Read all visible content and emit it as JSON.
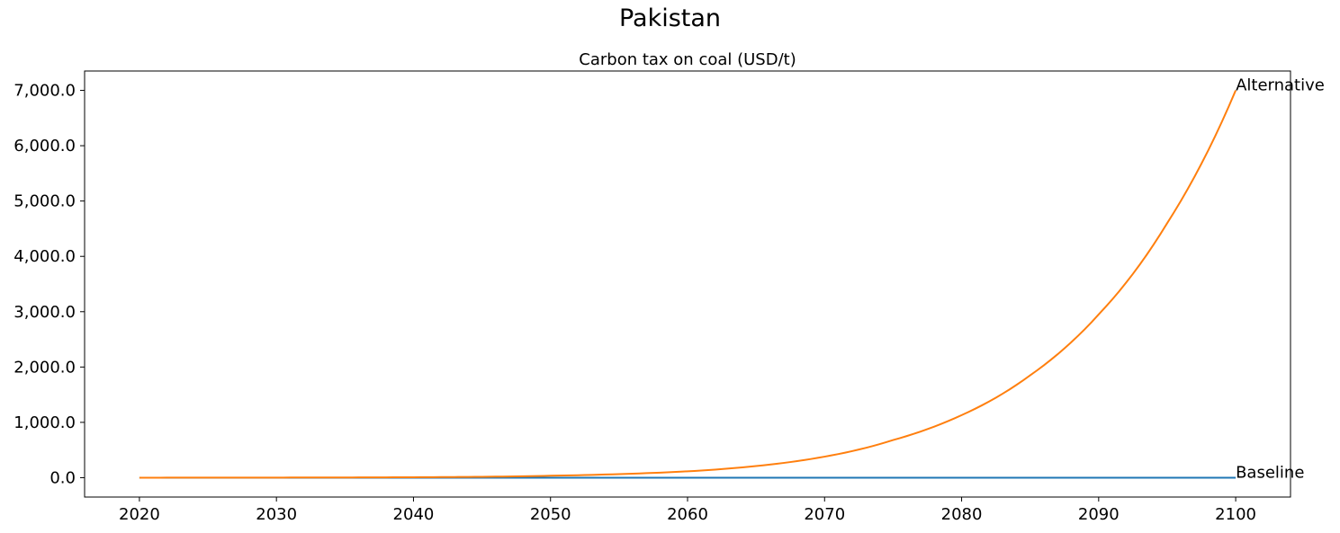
{
  "figure": {
    "title": "Pakistan"
  },
  "chart_data": {
    "type": "line",
    "title": "Carbon tax on coal (USD/t)",
    "xlabel": "",
    "ylabel": "",
    "xlim": [
      2016,
      2104
    ],
    "ylim": [
      -350,
      7350
    ],
    "xticks": [
      2020,
      2030,
      2040,
      2050,
      2060,
      2070,
      2080,
      2090,
      2100
    ],
    "xtick_labels": [
      "2020",
      "2030",
      "2040",
      "2050",
      "2060",
      "2070",
      "2080",
      "2090",
      "2100"
    ],
    "yticks": [
      0,
      1000,
      2000,
      3000,
      4000,
      5000,
      6000,
      7000
    ],
    "ytick_labels": [
      "0.0",
      "1,000.0",
      "2,000.0",
      "3,000.0",
      "4,000.0",
      "5,000.0",
      "6,000.0",
      "7,000.0"
    ],
    "grid": false,
    "legend": "none",
    "series": [
      {
        "name": "Baseline",
        "color": "#1f77b4",
        "x": [
          2020,
          2030,
          2040,
          2050,
          2060,
          2070,
          2080,
          2090,
          2100
        ],
        "y": [
          0,
          0,
          0,
          0,
          0,
          0,
          0,
          0,
          0
        ]
      },
      {
        "name": "Alternative",
        "color": "#ff7f0e",
        "x": [
          2020,
          2025,
          2030,
          2035,
          2040,
          2045,
          2050,
          2055,
          2060,
          2065,
          2070,
          2075,
          2080,
          2085,
          2090,
          2095,
          2100
        ],
        "y": [
          0,
          1,
          2,
          4,
          8,
          16,
          35,
          65,
          115,
          210,
          380,
          680,
          1130,
          1850,
          2950,
          4600,
          7000
        ]
      }
    ]
  }
}
